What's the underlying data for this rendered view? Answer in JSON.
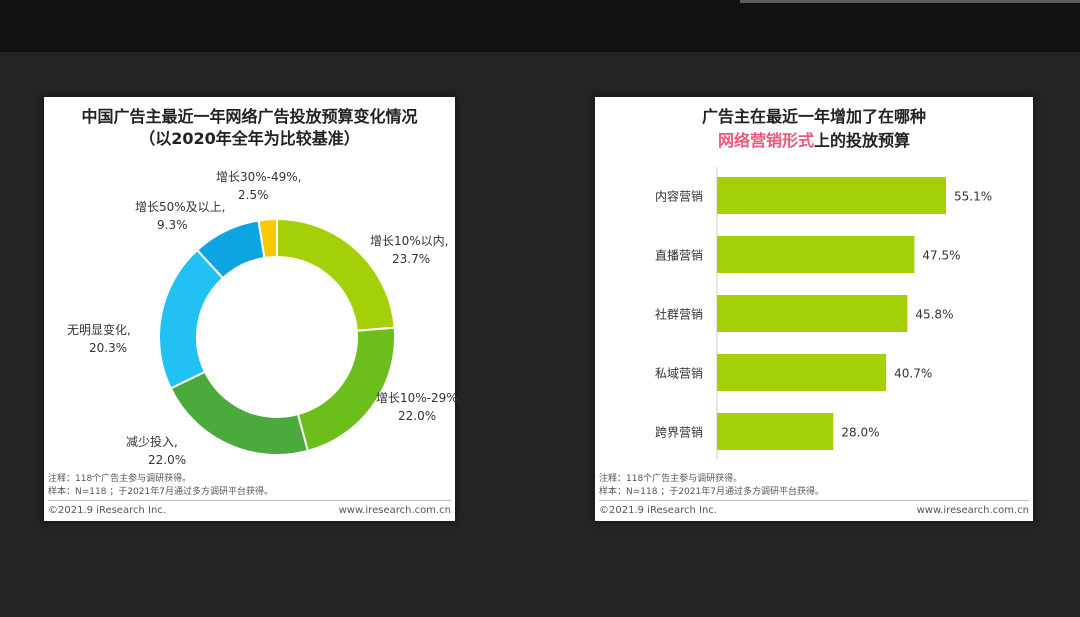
{
  "left_panel": {
    "title_line1": "中国广告主最近一年网络广告投放预算变化情况",
    "title_line2": "（以2020年全年为比较基准）",
    "note1": "注释：118个广告主参与调研获得。",
    "note2": "样本：N=118 ；于2021年7月通过多方调研平台获得。",
    "copyright": "©2021.9 iResearch Inc.",
    "site": "www.iresearch.com.cn"
  },
  "right_panel": {
    "title_line1": "广告主在最近一年增加了在哪种",
    "title_line2_highlight": "网络营销形式",
    "title_line2_rest": "上的投放预算",
    "note1": "注释：118个广告主参与调研获得。",
    "note2": "样本：N=118 ；于2021年7月通过多方调研平台获得。",
    "copyright": "©2021.9 iResearch Inc.",
    "site": "www.iresearch.com.cn"
  },
  "chart_data": [
    {
      "type": "pie",
      "donut": true,
      "title": "中国广告主最近一年网络广告投放预算变化情况",
      "subtitle": "（以2020年全年为比较基准）",
      "slices": [
        {
          "label": "增长10%以内,",
          "value": 23.7,
          "value_label": "23.7%",
          "color": "#a4d007"
        },
        {
          "label": "增长10%-29%,",
          "value": 22.0,
          "value_label": "22.0%",
          "color": "#6cbe1b"
        },
        {
          "label": "减少投入,",
          "value": 22.0,
          "value_label": "22.0%",
          "color": "#4aaa3c"
        },
        {
          "label": "无明显变化,",
          "value": 20.3,
          "value_label": "20.3%",
          "color": "#21c1f3"
        },
        {
          "label": "增长50%及以上,",
          "value": 9.3,
          "value_label": "9.3%",
          "color": "#0da4e3"
        },
        {
          "label": "增长30%-49%,",
          "value": 2.5,
          "value_label": "2.5%",
          "color": "#f7c900"
        }
      ]
    },
    {
      "type": "bar",
      "orientation": "horizontal",
      "title": "广告主在最近一年增加了在哪种网络营销形式上的投放预算",
      "categories": [
        "内容营销",
        "直播营销",
        "社群营销",
        "私域营销",
        "跨界营销"
      ],
      "values": [
        55.1,
        47.5,
        45.8,
        40.7,
        28.0
      ],
      "value_labels": [
        "55.1%",
        "47.5%",
        "45.8%",
        "40.7%",
        "28.0%"
      ],
      "color": "#a4d007"
    }
  ]
}
